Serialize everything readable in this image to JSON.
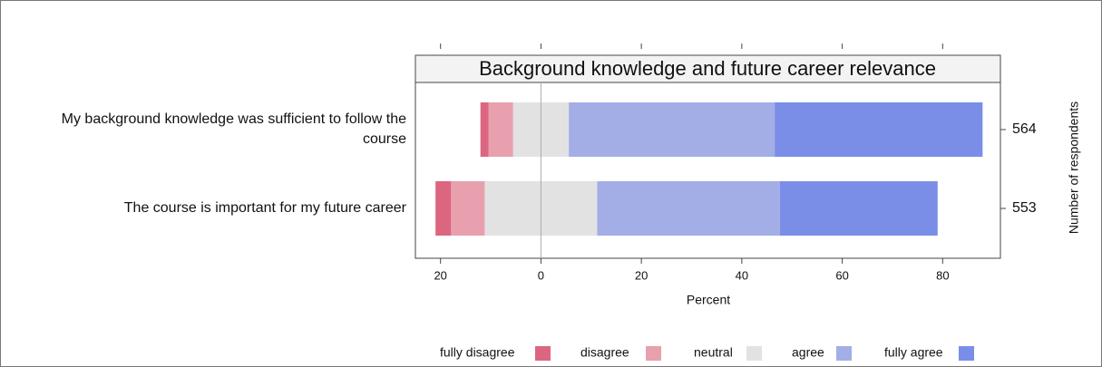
{
  "chart_data": {
    "type": "diverging-bar",
    "title": "Background knowledge and future career relevance",
    "categories": [
      "My background knowledge was sufficient to follow the course",
      "The course is important for my future career"
    ],
    "respondents": [
      564,
      553
    ],
    "y2_label": "Number of respondents",
    "xlabel": "Percent",
    "xlim": [
      -25,
      91.5
    ],
    "xticks": [
      {
        "value": -20,
        "label": "20"
      },
      0,
      20,
      40,
      60,
      80
    ],
    "neutral": "neutral",
    "series": [
      {
        "name": "fully disagree",
        "color": "#dc6680",
        "values": [
          1.6,
          3.1
        ],
        "side": "left"
      },
      {
        "name": "disagree",
        "color": "#e8a0ae",
        "values": [
          4.9,
          6.7
        ],
        "side": "left"
      },
      {
        "name": "neutral",
        "color": "#e2e2e2",
        "values": [
          11.1,
          22.4
        ],
        "side": "center"
      },
      {
        "name": "agree",
        "color": "#a3aee6",
        "values": [
          41,
          36.4
        ],
        "side": "right"
      },
      {
        "name": "fully agree",
        "color": "#7a8ee8",
        "values": [
          41.4,
          31.4
        ],
        "side": "right"
      }
    ]
  }
}
